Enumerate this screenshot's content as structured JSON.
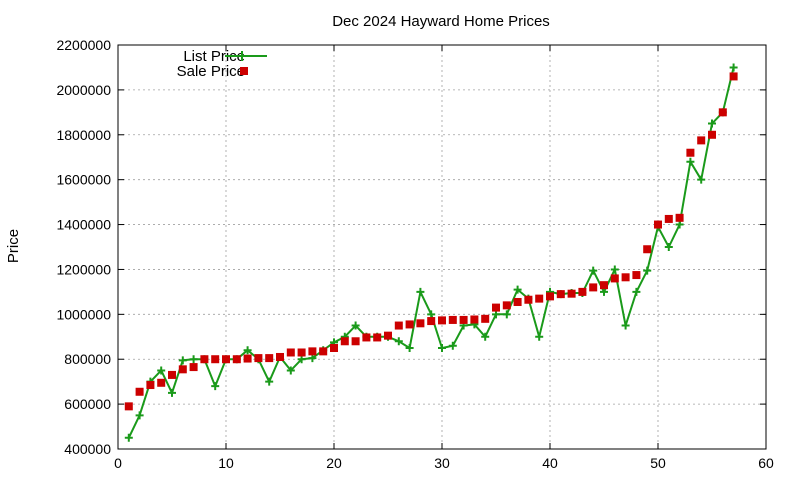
{
  "chart_data": {
    "type": "line",
    "title": "Dec 2024 Hayward Home Prices",
    "xlabel": "",
    "ylabel": "Price",
    "xlim": [
      0,
      60
    ],
    "ylim": [
      400000,
      2200000
    ],
    "xticks": [
      0,
      10,
      20,
      30,
      40,
      50,
      60
    ],
    "yticks": [
      400000,
      600000,
      800000,
      1000000,
      1200000,
      1400000,
      1600000,
      1800000,
      2000000,
      2200000
    ],
    "grid": true,
    "legend_position": "top-left",
    "x": [
      1,
      2,
      3,
      4,
      5,
      6,
      7,
      8,
      9,
      10,
      11,
      12,
      13,
      14,
      15,
      16,
      17,
      18,
      19,
      20,
      21,
      22,
      23,
      24,
      25,
      26,
      27,
      28,
      29,
      30,
      31,
      32,
      33,
      34,
      35,
      36,
      37,
      38,
      39,
      40,
      41,
      42,
      43,
      44,
      45,
      46,
      47,
      48,
      49,
      50,
      51,
      52,
      53,
      54,
      55,
      56,
      57
    ],
    "series": [
      {
        "name": "List Price",
        "style": "line-cross",
        "color": "#1a9a1a",
        "values": [
          450000,
          550000,
          700000,
          750000,
          650000,
          795000,
          800000,
          800000,
          680000,
          800000,
          800000,
          840000,
          800000,
          700000,
          810000,
          750000,
          800000,
          805000,
          840000,
          875000,
          900000,
          950000,
          900000,
          900000,
          900000,
          880000,
          850000,
          1100000,
          1000000,
          850000,
          860000,
          950000,
          955000,
          900000,
          1000000,
          1000000,
          1110000,
          1070000,
          900000,
          1100000,
          1090000,
          1095000,
          1095000,
          1195000,
          1100000,
          1200000,
          950000,
          1100000,
          1195000,
          1390000,
          1300000,
          1400000,
          1680000,
          1600000,
          1850000,
          1900000,
          2100000
        ]
      },
      {
        "name": "Sale Price",
        "style": "square",
        "color": "#cc0000",
        "values": [
          590000,
          655000,
          685000,
          695000,
          730000,
          755000,
          765000,
          800000,
          800000,
          800000,
          800000,
          803000,
          805000,
          805000,
          810000,
          830000,
          830000,
          835000,
          835000,
          850000,
          880000,
          880000,
          897000,
          897000,
          905000,
          950000,
          955000,
          960000,
          970000,
          973000,
          975000,
          975000,
          977000,
          980000,
          1030000,
          1040000,
          1055000,
          1065000,
          1070000,
          1080000,
          1090000,
          1092000,
          1100000,
          1120000,
          1130000,
          1160000,
          1165000,
          1175000,
          1290000,
          1400000,
          1425000,
          1430000,
          1720000,
          1775000,
          1800000,
          1900000,
          2060000
        ]
      }
    ]
  }
}
